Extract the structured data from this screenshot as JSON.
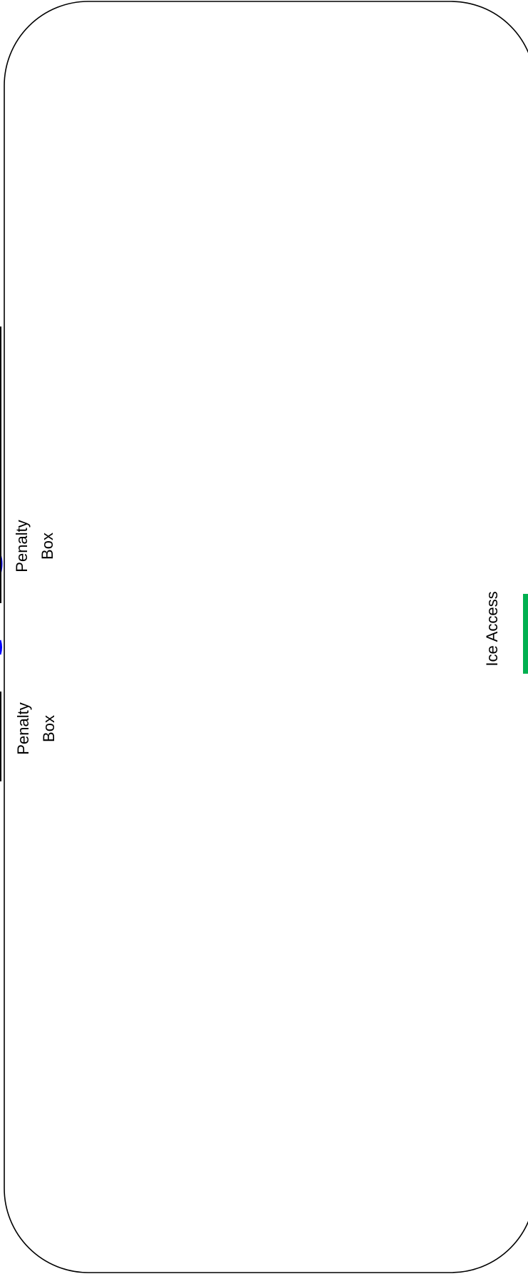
{
  "rink": {
    "outline_color": "#000000",
    "background": "#ffffff"
  },
  "penalty_box_upper": {
    "line1": "Penalty",
    "line2": "Box"
  },
  "penalty_box_lower": {
    "line1": "Penalty",
    "line2": "Box"
  },
  "ice_access": {
    "label": "Ice Access",
    "marker_color": "#00b050"
  },
  "blue_line_color": "#0000ff"
}
